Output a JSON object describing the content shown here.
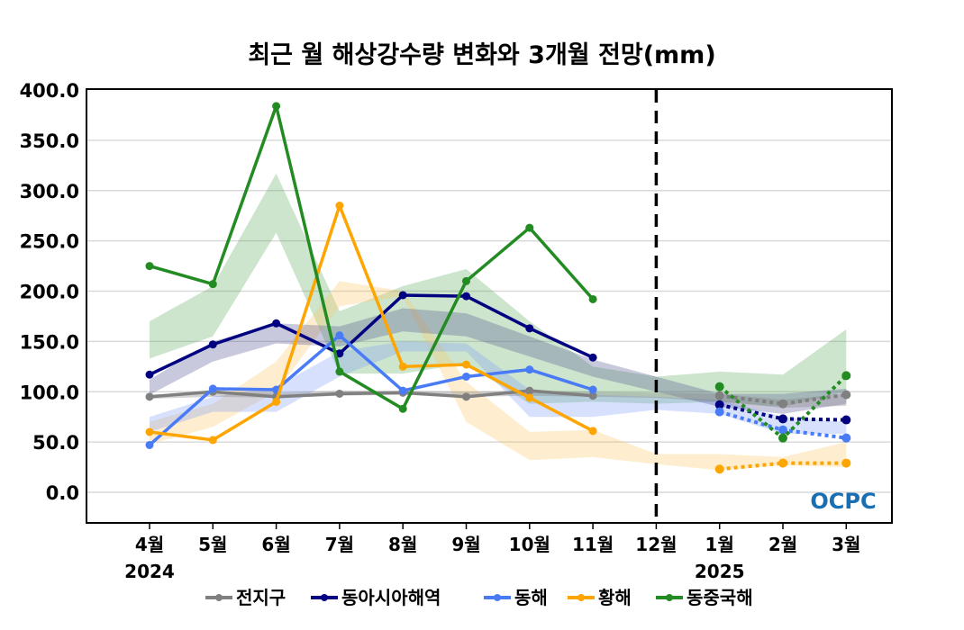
{
  "chart_data": {
    "type": "line",
    "title": "최근 월 해상강수량 변화와 3개월 전망(mm)",
    "xlabel": "",
    "ylabel": "",
    "ylim": [
      -30,
      400
    ],
    "yticks": [
      "0.0",
      "50.0",
      "100.0",
      "150.0",
      "200.0",
      "250.0",
      "300.0",
      "350.0",
      "400.0"
    ],
    "ytick_values": [
      0,
      50,
      100,
      150,
      200,
      250,
      300,
      350,
      400
    ],
    "categories": [
      "4월",
      "5월",
      "6월",
      "7월",
      "8월",
      "9월",
      "10월",
      "11월",
      "12월",
      "1월",
      "2월",
      "3월"
    ],
    "year_labels": [
      {
        "category": "4월",
        "label": "2024"
      },
      {
        "category": "1월",
        "label": "2025"
      }
    ],
    "divider_after": "11월",
    "grid": true,
    "legend_position": "bottom",
    "watermark": "OCPC",
    "series": [
      {
        "name": "전지구",
        "color": "#808080",
        "observed": [
          95,
          100,
          95,
          98,
          99,
          95,
          101,
          96
        ],
        "forecast": [
          96,
          88,
          97
        ],
        "normal_low": [
          93,
          95,
          94,
          96,
          97,
          95,
          96,
          95,
          94,
          90,
          84,
          86
        ],
        "normal_high": [
          97,
          100,
          99,
          101,
          101,
          100,
          101,
          100,
          99,
          98,
          92,
          98
        ]
      },
      {
        "name": "동아시아해역",
        "color": "#000080",
        "observed": [
          117,
          147,
          168,
          138,
          196,
          195,
          163,
          134
        ],
        "forecast": [
          87,
          73,
          72
        ],
        "normal_low": [
          97,
          130,
          148,
          145,
          160,
          155,
          135,
          115,
          100,
          85,
          78,
          88
        ],
        "normal_high": [
          112,
          150,
          168,
          165,
          183,
          178,
          155,
          132,
          115,
          98,
          98,
          103
        ]
      },
      {
        "name": "동해",
        "color": "#4A7BF7",
        "observed": [
          47,
          103,
          102,
          156,
          101,
          115,
          122,
          102
        ],
        "forecast": [
          80,
          62,
          54
        ],
        "normal_low": [
          60,
          80,
          80,
          115,
          140,
          140,
          75,
          75,
          82,
          78,
          58,
          58
        ],
        "normal_high": [
          75,
          95,
          105,
          140,
          150,
          148,
          102,
          97,
          95,
          92,
          75,
          70
        ]
      },
      {
        "name": "황해",
        "color": "#FFA500",
        "observed": [
          60,
          52,
          90,
          285,
          125,
          127,
          94,
          61
        ],
        "forecast": [
          23,
          29,
          29
        ],
        "normal_low": [
          48,
          65,
          100,
          185,
          195,
          70,
          32,
          35,
          28,
          22,
          27,
          25
        ],
        "normal_high": [
          70,
          88,
          130,
          210,
          200,
          110,
          60,
          62,
          38,
          38,
          35,
          50
        ]
      },
      {
        "name": "동중국해",
        "color": "#228B22",
        "observed": [
          225,
          207,
          384,
          120,
          83,
          210,
          263,
          192
        ],
        "forecast": [
          105,
          54,
          116
        ],
        "normal_low": [
          133,
          155,
          258,
          118,
          118,
          128,
          88,
          90,
          88,
          90,
          85,
          100
        ],
        "normal_high": [
          170,
          205,
          317,
          180,
          205,
          222,
          170,
          125,
          115,
          120,
          117,
          162
        ]
      }
    ]
  }
}
